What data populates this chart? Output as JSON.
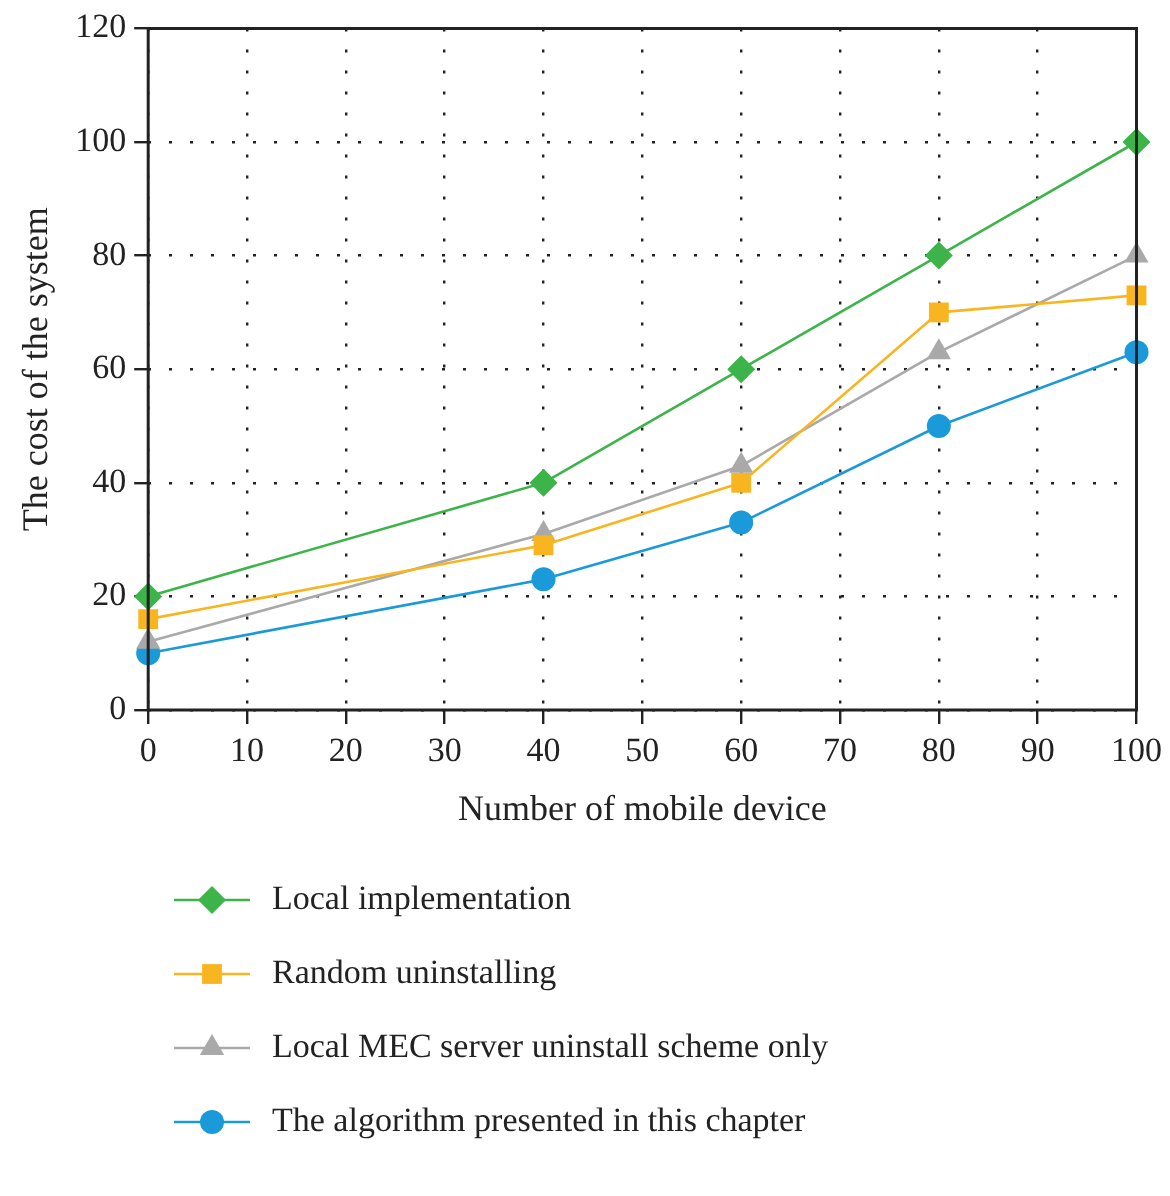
{
  "chart_data": {
    "type": "line",
    "xlabel": "Number of mobile device",
    "ylabel": "The cost of the system",
    "x": [
      0,
      40,
      60,
      80,
      100
    ],
    "xlim": [
      0,
      100
    ],
    "xticks": [
      0,
      10,
      20,
      30,
      40,
      50,
      60,
      70,
      80,
      90,
      100
    ],
    "ylim": [
      0,
      120
    ],
    "yticks": [
      0,
      20,
      40,
      60,
      80,
      100,
      120
    ],
    "grid": true,
    "legend": "bottom",
    "series": [
      {
        "name": "Local implementation",
        "color": "#3cb44a",
        "marker": "diamond",
        "values": [
          20,
          40,
          60,
          80,
          100
        ]
      },
      {
        "name": "Random uninstalling",
        "color": "#f9b520",
        "marker": "square",
        "values": [
          16,
          29,
          40,
          70,
          73
        ]
      },
      {
        "name": "Local MEC server uninstall scheme only",
        "color": "#a9a9aa",
        "marker": "triangle",
        "values": [
          12,
          31,
          43,
          63,
          80
        ]
      },
      {
        "name": "The algorithm presented in this chapter",
        "color": "#1a9ad8",
        "marker": "circle",
        "values": [
          10,
          23,
          33,
          50,
          63
        ]
      }
    ]
  }
}
